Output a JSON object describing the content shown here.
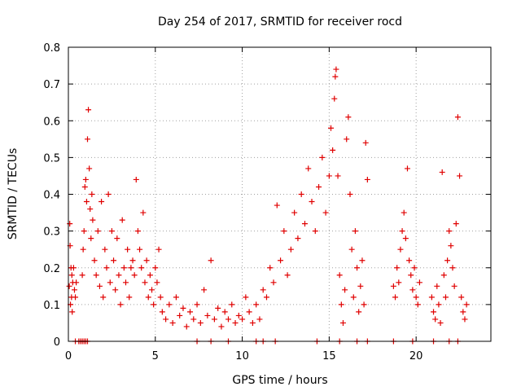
{
  "chart_data": {
    "type": "scatter",
    "title": "Day 254 of 2017, SRMTID for receiver rocd",
    "xlabel": "GPS time / hours",
    "ylabel": "SRMTID / TECUs",
    "xlim": [
      0,
      24.3
    ],
    "ylim": [
      0,
      0.8
    ],
    "grid": true,
    "marker": "+",
    "color": "#e00000",
    "x_ticks": [
      0,
      5,
      10,
      15,
      20
    ],
    "x_tick_labels": [
      "0",
      "5",
      "10",
      "15",
      "20"
    ],
    "y_ticks": [
      0,
      0.1,
      0.2,
      0.3,
      0.4,
      0.5,
      0.6,
      0.7,
      0.8
    ],
    "y_tick_labels": [
      "0",
      "0.1",
      "0.2",
      "0.3",
      "0.4",
      "0.5",
      "0.6",
      "0.7",
      "0.8"
    ],
    "series": [
      {
        "name": "SRMTID",
        "x": [
          0.05,
          0.08,
          0.1,
          0.12,
          0.15,
          0.18,
          0.2,
          0.22,
          0.25,
          0.3,
          0.35,
          0.4,
          0.45,
          0.8,
          0.85,
          0.9,
          0.95,
          1.0,
          1.05,
          1.1,
          1.15,
          1.2,
          1.25,
          1.3,
          1.35,
          1.4,
          1.5,
          1.6,
          1.7,
          1.8,
          1.9,
          2.0,
          2.1,
          2.2,
          2.3,
          2.4,
          2.5,
          2.6,
          2.7,
          2.8,
          2.9,
          3.0,
          3.1,
          3.2,
          3.3,
          3.4,
          3.5,
          3.6,
          3.7,
          3.8,
          3.9,
          4.0,
          4.1,
          4.2,
          4.3,
          4.4,
          4.5,
          4.6,
          4.7,
          4.8,
          4.9,
          5.0,
          5.1,
          5.2,
          5.3,
          5.4,
          5.6,
          5.8,
          6.0,
          6.2,
          6.4,
          6.6,
          6.8,
          7.0,
          7.2,
          7.4,
          7.6,
          7.8,
          8.0,
          8.2,
          8.4,
          8.6,
          8.8,
          9.0,
          9.2,
          9.4,
          9.6,
          9.8,
          10.0,
          10.2,
          10.4,
          10.6,
          10.8,
          11.0,
          11.2,
          11.4,
          11.6,
          11.8,
          12.0,
          12.2,
          12.4,
          12.6,
          12.8,
          13.0,
          13.2,
          13.4,
          13.6,
          13.8,
          14.0,
          14.2,
          14.4,
          14.6,
          14.8,
          15.0,
          15.1,
          15.2,
          15.3,
          15.35,
          15.4,
          15.5,
          15.6,
          15.7,
          15.8,
          15.9,
          16.0,
          16.1,
          16.2,
          16.3,
          16.4,
          16.5,
          16.6,
          16.7,
          16.8,
          16.9,
          17.0,
          17.1,
          17.2,
          18.7,
          18.8,
          18.9,
          19.0,
          19.1,
          19.2,
          19.3,
          19.4,
          19.5,
          19.6,
          19.7,
          19.8,
          19.9,
          20.0,
          20.1,
          20.2,
          20.9,
          21.0,
          21.1,
          21.2,
          21.3,
          21.4,
          21.5,
          21.6,
          21.7,
          21.8,
          21.9,
          22.0,
          22.1,
          22.2,
          22.3,
          22.4,
          22.5,
          22.6,
          22.7,
          22.8,
          22.9,
          0.4,
          0.6,
          0.7,
          0.8,
          0.9,
          1.0,
          1.1,
          7.4,
          8.2,
          9.2,
          10.8,
          11.2,
          11.9,
          14.3,
          15.6,
          16.6,
          17.2,
          18.7,
          19.8,
          21.0,
          21.9,
          22.4
        ],
        "y": [
          0.15,
          0.32,
          0.26,
          0.1,
          0.2,
          0.12,
          0.18,
          0.08,
          0.16,
          0.2,
          0.14,
          0.12,
          0.16,
          0.18,
          0.25,
          0.3,
          0.42,
          0.44,
          0.38,
          0.55,
          0.63,
          0.47,
          0.36,
          0.28,
          0.4,
          0.33,
          0.22,
          0.18,
          0.3,
          0.15,
          0.38,
          0.12,
          0.25,
          0.2,
          0.4,
          0.16,
          0.3,
          0.22,
          0.14,
          0.28,
          0.18,
          0.1,
          0.33,
          0.2,
          0.16,
          0.25,
          0.12,
          0.2,
          0.22,
          0.18,
          0.44,
          0.3,
          0.25,
          0.2,
          0.35,
          0.16,
          0.22,
          0.12,
          0.18,
          0.14,
          0.1,
          0.2,
          0.16,
          0.25,
          0.12,
          0.08,
          0.06,
          0.1,
          0.05,
          0.12,
          0.07,
          0.09,
          0.04,
          0.08,
          0.06,
          0.1,
          0.05,
          0.14,
          0.07,
          0.22,
          0.06,
          0.09,
          0.04,
          0.08,
          0.06,
          0.1,
          0.05,
          0.07,
          0.06,
          0.12,
          0.08,
          0.05,
          0.1,
          0.06,
          0.14,
          0.12,
          0.2,
          0.16,
          0.37,
          0.22,
          0.3,
          0.18,
          0.25,
          0.35,
          0.28,
          0.4,
          0.32,
          0.47,
          0.38,
          0.3,
          0.42,
          0.5,
          0.35,
          0.45,
          0.58,
          0.52,
          0.66,
          0.72,
          0.74,
          0.45,
          0.18,
          0.1,
          0.05,
          0.14,
          0.55,
          0.61,
          0.4,
          0.25,
          0.12,
          0.3,
          0.2,
          0.08,
          0.15,
          0.22,
          0.1,
          0.54,
          0.44,
          0.15,
          0.12,
          0.2,
          0.16,
          0.25,
          0.3,
          0.35,
          0.28,
          0.47,
          0.22,
          0.18,
          0.14,
          0.2,
          0.12,
          0.1,
          0.16,
          0.12,
          0.08,
          0.06,
          0.15,
          0.1,
          0.05,
          0.46,
          0.18,
          0.12,
          0.22,
          0.3,
          0.26,
          0.2,
          0.15,
          0.32,
          0.61,
          0.45,
          0.12,
          0.08,
          0.06,
          0.1,
          0,
          0,
          0,
          0,
          0,
          0,
          0,
          0,
          0,
          0,
          0,
          0,
          0,
          0,
          0,
          0,
          0,
          0,
          0,
          0,
          0,
          0
        ]
      }
    ]
  }
}
